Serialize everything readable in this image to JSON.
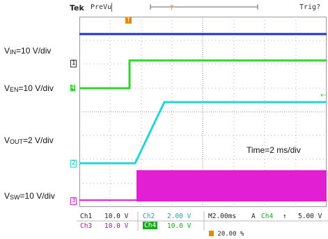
{
  "topbar": {
    "brand": "Tek",
    "run_state": "PreVu",
    "trigger_status": "Trig?"
  },
  "labels": {
    "vin": {
      "main": "V",
      "sub": "IN",
      "rest": "=10 V/div"
    },
    "ven": {
      "main": "V",
      "sub": "EN",
      "rest": "=10 V/div"
    },
    "vout": {
      "main": "V",
      "sub": "OUT",
      "rest": "=2 V/div"
    },
    "vsw": {
      "main": "V",
      "sub": "SW",
      "rest": "=10 V/div"
    },
    "time": "Time=2 ms/div"
  },
  "markers": {
    "ch1": "1",
    "ch4": "4",
    "ch2": "2",
    "ch3": "3",
    "trigger": "T"
  },
  "readout": {
    "ch1_label": "Ch1",
    "ch1_scale": "10.0 V",
    "ch2_label": "Ch2",
    "ch2_scale": "2.00 V",
    "timebase": "M2.00ms",
    "acq": "A",
    "trig_source": "Ch4",
    "trig_slope": "↑",
    "trig_level": "5.00 V",
    "ch3_label": "Ch3",
    "ch3_scale": "10.0 V",
    "ch4_label": "Ch4",
    "ch4_scale": "10.0 V",
    "trig_position": "20.00 %"
  },
  "colors": {
    "ch1_vin": "#1b2fd0",
    "ch4_ven": "#2ed72a",
    "ch2_vout": "#20d6d8",
    "ch3_vsw": "#e21fd3",
    "trigger_marker": "#e58a00",
    "grid": "#888888"
  }
}
